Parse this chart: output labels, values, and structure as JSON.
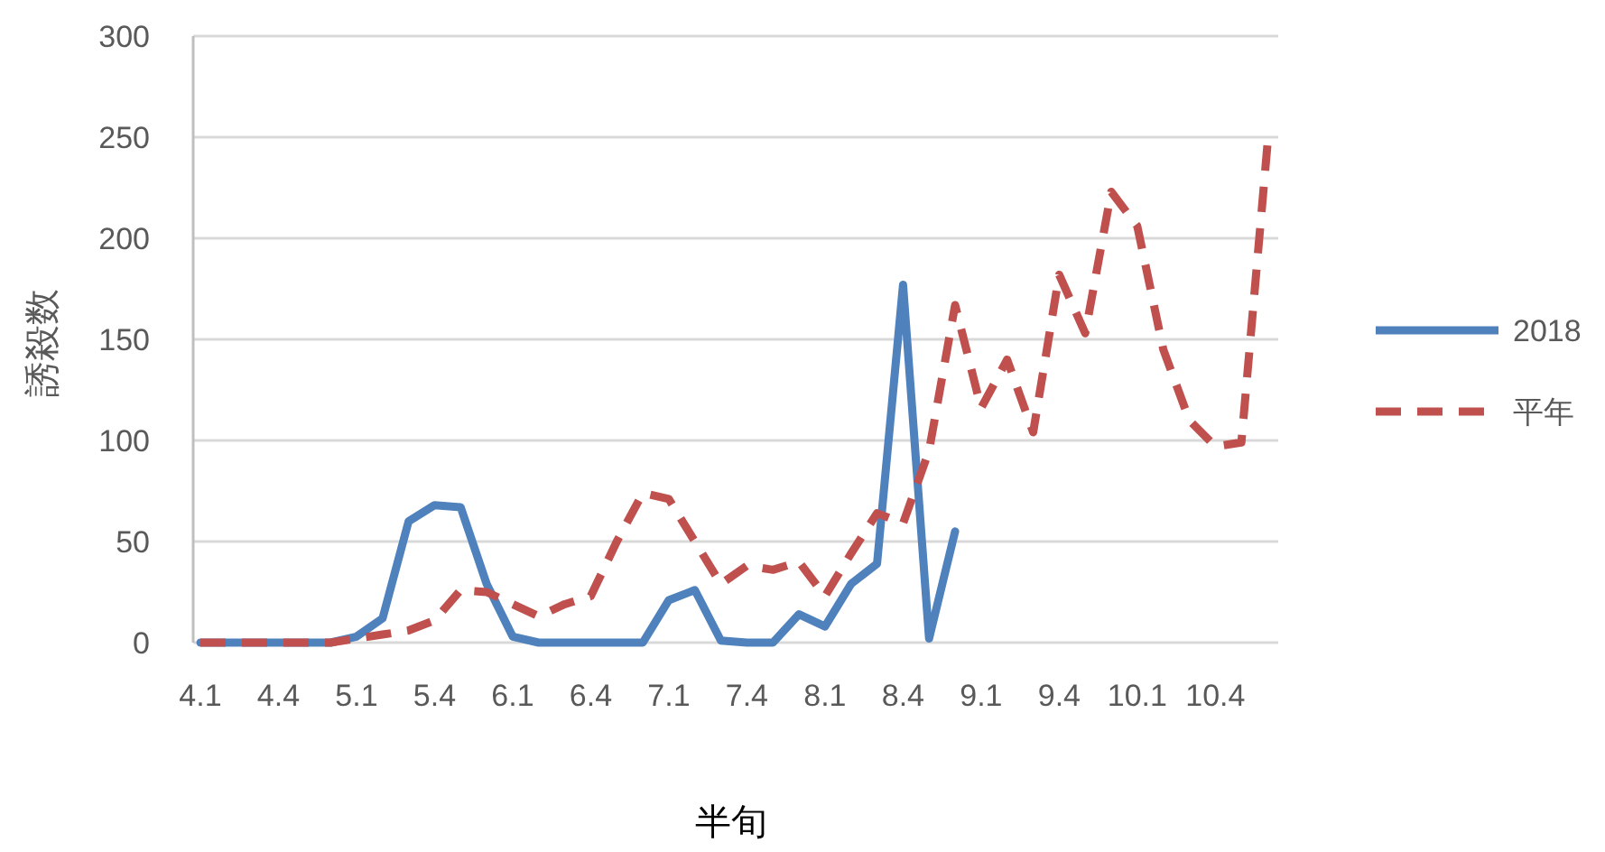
{
  "chart_data": {
    "type": "line",
    "xlabel": "半旬",
    "ylabel": "誘殺数",
    "categories": [
      "4.1",
      null,
      null,
      "4.4",
      null,
      null,
      "5.1",
      null,
      null,
      "5.4",
      null,
      null,
      "6.1",
      null,
      null,
      "6.4",
      null,
      null,
      "7.1",
      null,
      null,
      "7.4",
      null,
      null,
      "8.1",
      null,
      null,
      "8.4",
      null,
      null,
      "9.1",
      null,
      null,
      "9.4",
      null,
      null,
      "10.1",
      null,
      null,
      "10.4",
      null,
      null
    ],
    "series": [
      {
        "name": "2018",
        "color": "#4f81bd",
        "line_style": "solid",
        "values": [
          0,
          0,
          0,
          0,
          0,
          0,
          3,
          12,
          60,
          68,
          67,
          29,
          3,
          0,
          0,
          0,
          0,
          0,
          21,
          26,
          1,
          0,
          0,
          14,
          8,
          29,
          39,
          177,
          2,
          55,
          null,
          null,
          null,
          null,
          null,
          null,
          null,
          null,
          null,
          null,
          null,
          null
        ]
      },
      {
        "name": "平年",
        "color": "#c0504d",
        "line_style": "dashed",
        "values": [
          0,
          0,
          0,
          0,
          0,
          0,
          2,
          4,
          6,
          11,
          26,
          25,
          19,
          13,
          19,
          23,
          50,
          74,
          71,
          50,
          29,
          38,
          36,
          40,
          23,
          44,
          64,
          59,
          95,
          167,
          116,
          140,
          104,
          182,
          153,
          223,
          206,
          145,
          110,
          97,
          99,
          246
        ]
      }
    ],
    "ylim": [
      0,
      300
    ],
    "yticks": [
      0,
      50,
      100,
      150,
      200,
      250,
      300
    ],
    "grid": "y",
    "legend": "right",
    "marker": "none"
  }
}
